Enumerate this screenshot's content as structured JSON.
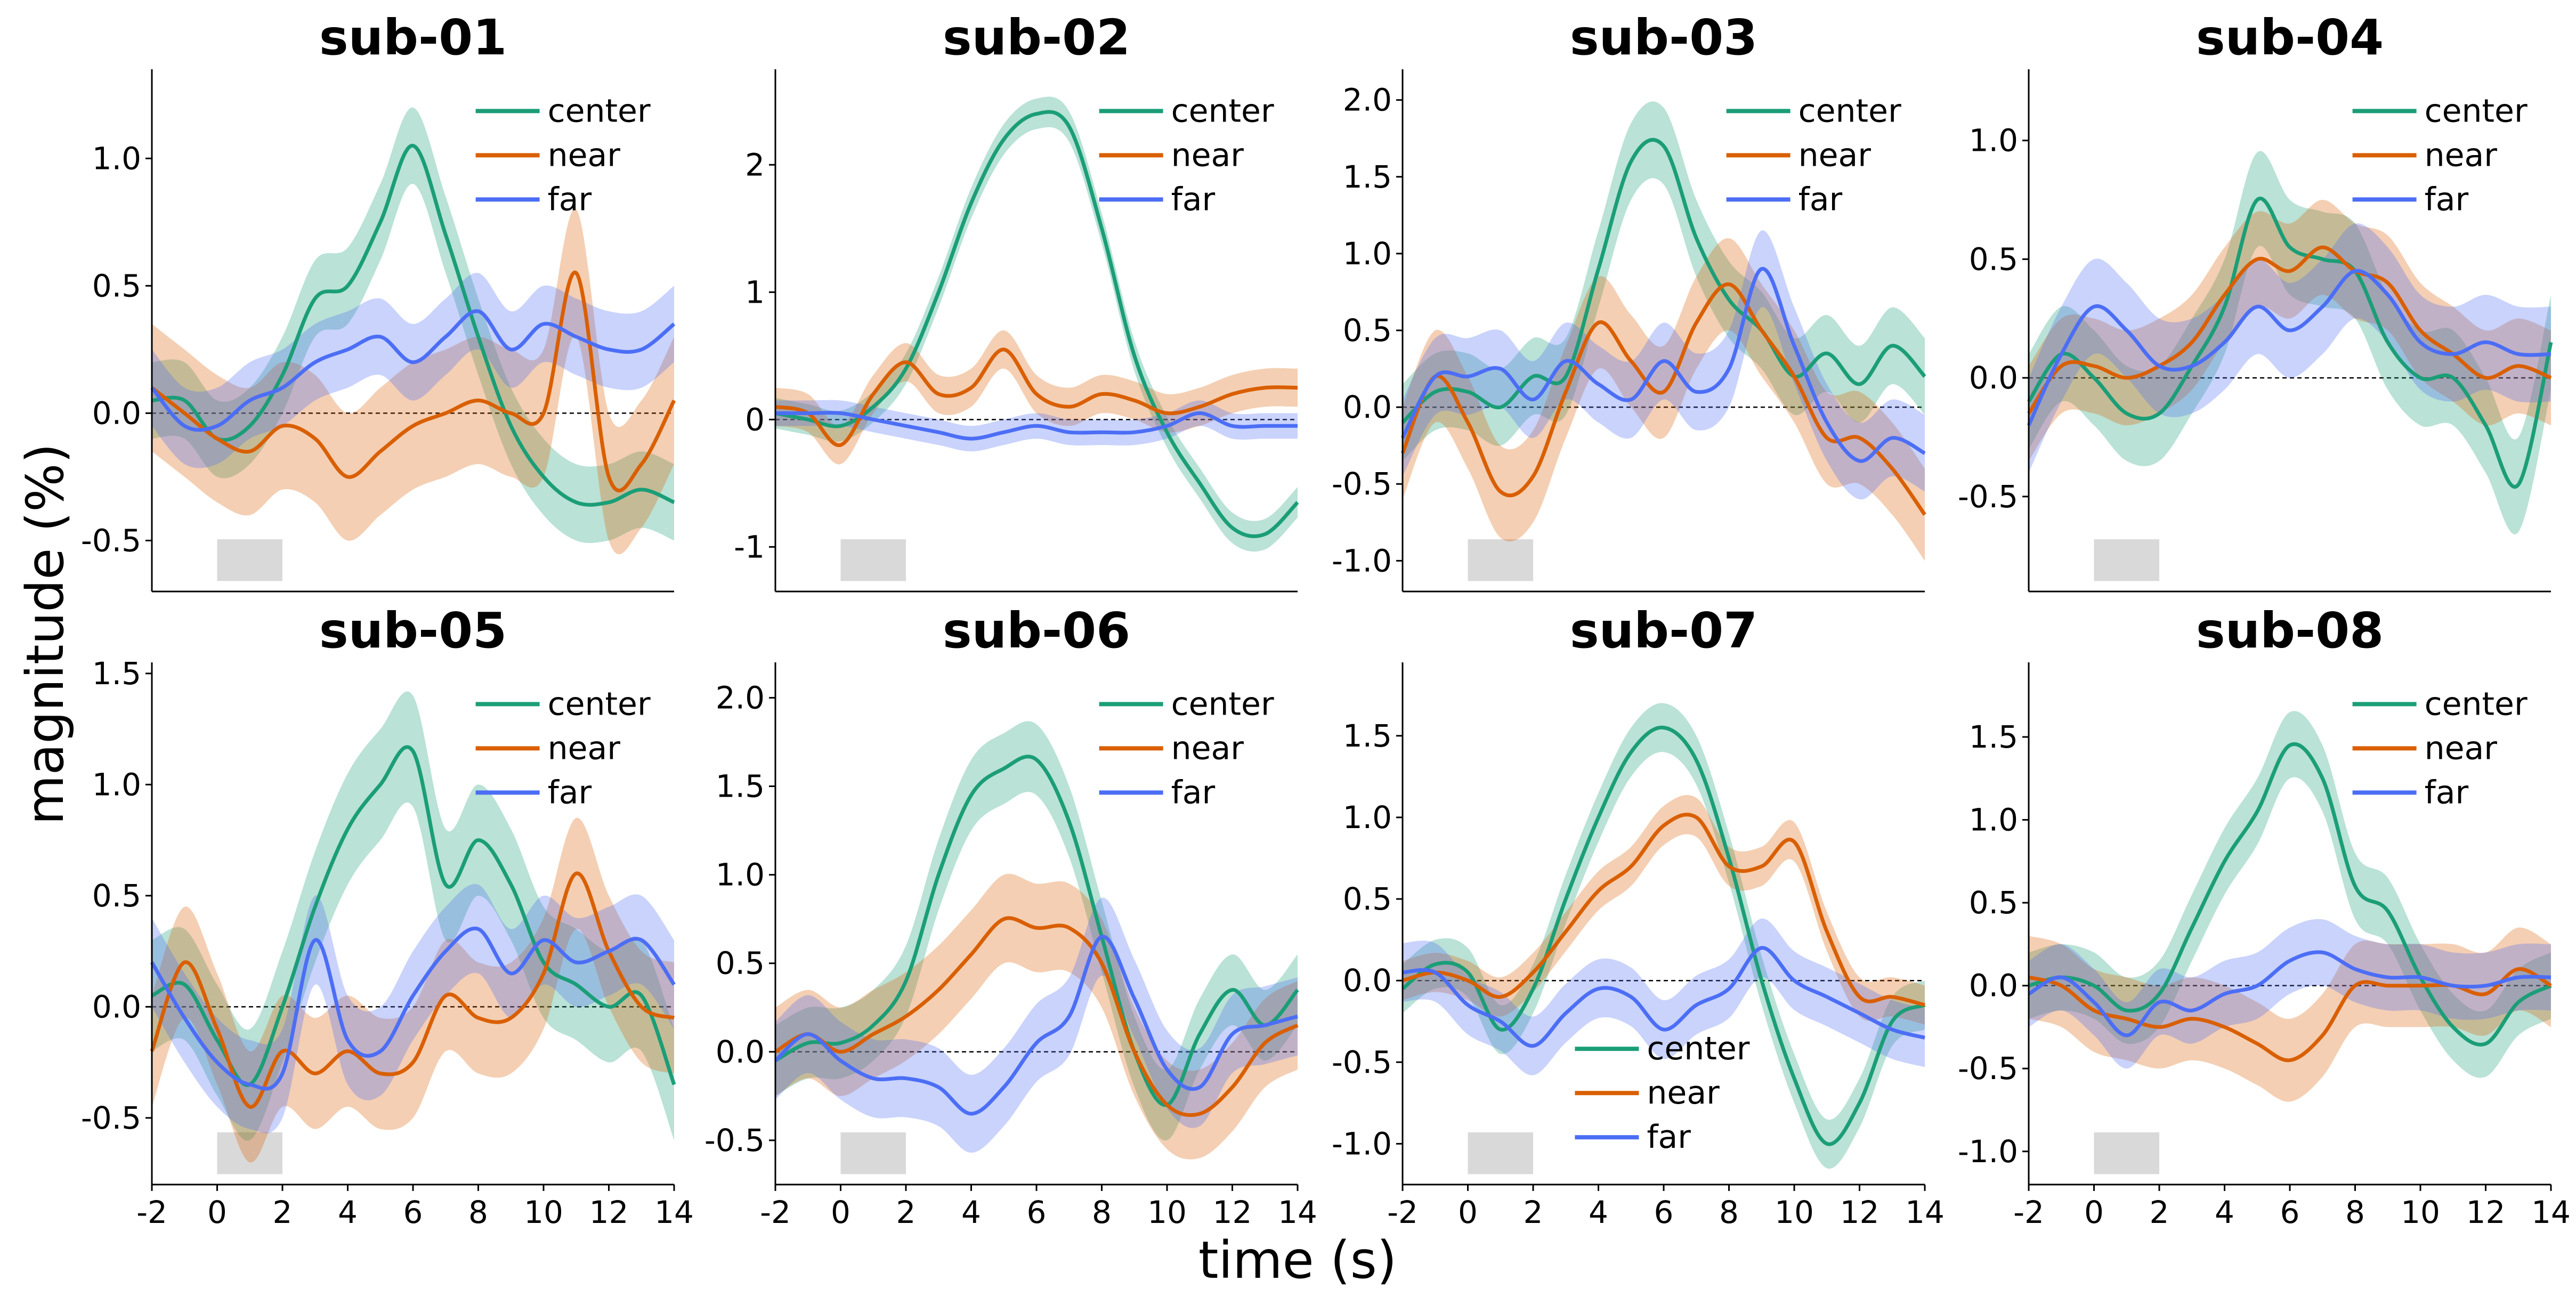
{
  "figure": {
    "xlabel": "time (s)",
    "ylabel": "magnitude (%)"
  },
  "colors": {
    "center": "#1b9e77",
    "near": "#d95f02",
    "far": "#4c6ef5",
    "stim": "#d9d9d9"
  },
  "chart_data": [
    {
      "type": "line",
      "title": "sub-01",
      "xlim": [
        -2,
        14
      ],
      "ylim": [
        -0.7,
        1.35
      ],
      "yticks": [
        -0.5,
        0.0,
        0.5,
        1.0
      ],
      "ytick_labels": [
        "-0.5",
        "0.0",
        "0.5",
        "1.0"
      ],
      "show_xticks": false,
      "legend": "top-right",
      "stimulus": [
        0,
        2
      ],
      "x": [
        -2,
        -1,
        0,
        1,
        2,
        3,
        4,
        5,
        6,
        7,
        8,
        9,
        10,
        11,
        12,
        13,
        14
      ],
      "series": [
        {
          "name": "center",
          "values": [
            0.05,
            0.05,
            -0.1,
            -0.05,
            0.15,
            0.45,
            0.5,
            0.75,
            1.05,
            0.7,
            0.3,
            -0.05,
            -0.25,
            -0.35,
            -0.35,
            -0.3,
            -0.35
          ],
          "band": 0.15
        },
        {
          "name": "near",
          "values": [
            0.1,
            0.0,
            -0.1,
            -0.15,
            -0.05,
            -0.1,
            -0.25,
            -0.15,
            -0.05,
            0.0,
            0.05,
            0.0,
            0.0,
            0.55,
            -0.25,
            -0.2,
            0.05
          ],
          "band": 0.25
        },
        {
          "name": "far",
          "values": [
            0.1,
            -0.05,
            -0.05,
            0.05,
            0.1,
            0.2,
            0.25,
            0.3,
            0.2,
            0.3,
            0.4,
            0.25,
            0.35,
            0.3,
            0.25,
            0.25,
            0.35
          ],
          "band": 0.15
        }
      ]
    },
    {
      "type": "line",
      "title": "sub-02",
      "xlim": [
        -2,
        14
      ],
      "ylim": [
        -1.35,
        2.75
      ],
      "yticks": [
        -1,
        0,
        1,
        2
      ],
      "ytick_labels": [
        "-1",
        "0",
        "1",
        "2"
      ],
      "show_xticks": false,
      "legend": "top-right",
      "stimulus": [
        0,
        2
      ],
      "x": [
        -2,
        -1,
        0,
        1,
        2,
        3,
        4,
        5,
        6,
        7,
        8,
        9,
        10,
        11,
        12,
        13,
        14
      ],
      "series": [
        {
          "name": "center",
          "values": [
            0.05,
            0.0,
            -0.05,
            0.1,
            0.4,
            1.0,
            1.7,
            2.2,
            2.4,
            2.3,
            1.5,
            0.5,
            -0.1,
            -0.5,
            -0.85,
            -0.9,
            -0.65
          ],
          "band": 0.12
        },
        {
          "name": "near",
          "values": [
            0.1,
            0.05,
            -0.2,
            0.2,
            0.45,
            0.2,
            0.25,
            0.55,
            0.2,
            0.1,
            0.2,
            0.15,
            0.05,
            0.1,
            0.2,
            0.25,
            0.25
          ],
          "band": 0.15
        },
        {
          "name": "far",
          "values": [
            0.05,
            0.05,
            0.05,
            0.0,
            -0.05,
            -0.1,
            -0.15,
            -0.1,
            -0.05,
            -0.1,
            -0.1,
            -0.1,
            -0.05,
            0.05,
            -0.05,
            -0.05,
            -0.05
          ],
          "band": 0.1
        }
      ]
    },
    {
      "type": "line",
      "title": "sub-03",
      "xlim": [
        -2,
        14
      ],
      "ylim": [
        -1.2,
        2.2
      ],
      "yticks": [
        -1.0,
        -0.5,
        0.0,
        0.5,
        1.0,
        1.5,
        2.0
      ],
      "ytick_labels": [
        "-1.0",
        "-0.5",
        "0.0",
        "0.5",
        "1.0",
        "1.5",
        "2.0"
      ],
      "show_xticks": false,
      "legend": "top-right",
      "stimulus": [
        0,
        2
      ],
      "x": [
        -2,
        -1,
        0,
        1,
        2,
        3,
        4,
        5,
        6,
        7,
        8,
        9,
        10,
        11,
        12,
        13,
        14
      ],
      "series": [
        {
          "name": "center",
          "values": [
            -0.1,
            0.1,
            0.1,
            0.0,
            0.2,
            0.2,
            0.9,
            1.6,
            1.7,
            1.1,
            0.7,
            0.5,
            0.2,
            0.35,
            0.15,
            0.4,
            0.2
          ],
          "band": 0.25
        },
        {
          "name": "near",
          "values": [
            -0.3,
            0.2,
            -0.1,
            -0.55,
            -0.45,
            0.1,
            0.55,
            0.3,
            0.1,
            0.55,
            0.8,
            0.5,
            0.2,
            -0.2,
            -0.2,
            -0.4,
            -0.7
          ],
          "band": 0.3
        },
        {
          "name": "far",
          "values": [
            -0.2,
            0.2,
            0.2,
            0.25,
            0.05,
            0.3,
            0.15,
            0.05,
            0.3,
            0.1,
            0.25,
            0.9,
            0.4,
            -0.1,
            -0.35,
            -0.2,
            -0.3
          ],
          "band": 0.25
        }
      ]
    },
    {
      "type": "line",
      "title": "sub-04",
      "xlim": [
        -2,
        14
      ],
      "ylim": [
        -0.9,
        1.3
      ],
      "yticks": [
        -0.5,
        0.0,
        0.5,
        1.0
      ],
      "ytick_labels": [
        "-0.5",
        "0.0",
        "0.5",
        "1.0"
      ],
      "show_xticks": false,
      "legend": "top-right",
      "stimulus": [
        0,
        2
      ],
      "x": [
        -2,
        -1,
        0,
        1,
        2,
        3,
        4,
        5,
        6,
        7,
        8,
        9,
        10,
        11,
        12,
        13,
        14
      ],
      "series": [
        {
          "name": "center",
          "values": [
            -0.1,
            0.1,
            0.0,
            -0.15,
            -0.15,
            0.05,
            0.3,
            0.75,
            0.55,
            0.5,
            0.45,
            0.15,
            0.0,
            0.0,
            -0.2,
            -0.45,
            0.15
          ],
          "band": 0.2
        },
        {
          "name": "near",
          "values": [
            -0.15,
            0.05,
            0.05,
            0.0,
            0.05,
            0.15,
            0.35,
            0.5,
            0.45,
            0.55,
            0.45,
            0.4,
            0.2,
            0.1,
            0.0,
            0.05,
            0.0
          ],
          "band": 0.2
        },
        {
          "name": "far",
          "values": [
            -0.2,
            0.1,
            0.3,
            0.2,
            0.05,
            0.05,
            0.15,
            0.3,
            0.2,
            0.3,
            0.45,
            0.35,
            0.15,
            0.1,
            0.15,
            0.1,
            0.1
          ],
          "band": 0.2
        }
      ]
    },
    {
      "type": "line",
      "title": "sub-05",
      "xlim": [
        -2,
        14
      ],
      "ylim": [
        -0.8,
        1.55
      ],
      "yticks": [
        -0.5,
        0.0,
        0.5,
        1.0,
        1.5
      ],
      "ytick_labels": [
        "-0.5",
        "0.0",
        "0.5",
        "1.0",
        "1.5"
      ],
      "show_xticks": true,
      "xticks": [
        -2,
        0,
        2,
        4,
        6,
        8,
        10,
        12,
        14
      ],
      "xtick_labels": [
        "-2",
        "0",
        "2",
        "4",
        "6",
        "8",
        "10",
        "12",
        "14"
      ],
      "legend": "top-right",
      "stimulus": [
        0,
        2
      ],
      "x": [
        -2,
        -1,
        0,
        1,
        2,
        3,
        4,
        5,
        6,
        7,
        8,
        9,
        10,
        11,
        12,
        13,
        14
      ],
      "series": [
        {
          "name": "center",
          "values": [
            0.05,
            0.1,
            -0.15,
            -0.35,
            0.0,
            0.45,
            0.8,
            1.0,
            1.15,
            0.55,
            0.75,
            0.55,
            0.2,
            0.1,
            0.0,
            0.05,
            -0.35
          ],
          "band": 0.25
        },
        {
          "name": "near",
          "values": [
            -0.2,
            0.2,
            -0.1,
            -0.45,
            -0.2,
            -0.3,
            -0.2,
            -0.3,
            -0.25,
            0.05,
            -0.05,
            -0.05,
            0.15,
            0.6,
            0.25,
            0.0,
            -0.05
          ],
          "band": 0.25
        },
        {
          "name": "far",
          "values": [
            0.2,
            -0.05,
            -0.25,
            -0.35,
            -0.3,
            0.3,
            -0.15,
            -0.2,
            0.05,
            0.25,
            0.35,
            0.15,
            0.3,
            0.2,
            0.25,
            0.3,
            0.1
          ],
          "band": 0.2
        }
      ]
    },
    {
      "type": "line",
      "title": "sub-06",
      "xlim": [
        -2,
        14
      ],
      "ylim": [
        -0.75,
        2.2
      ],
      "yticks": [
        -0.5,
        0.0,
        0.5,
        1.0,
        1.5,
        2.0
      ],
      "ytick_labels": [
        "-0.5",
        "0.0",
        "0.5",
        "1.0",
        "1.5",
        "2.0"
      ],
      "show_xticks": true,
      "xticks": [
        -2,
        0,
        2,
        4,
        6,
        8,
        10,
        12,
        14
      ],
      "xtick_labels": [
        "-2",
        "0",
        "2",
        "4",
        "6",
        "8",
        "10",
        "12",
        "14"
      ],
      "legend": "top-right",
      "stimulus": [
        0,
        2
      ],
      "x": [
        -2,
        -1,
        0,
        1,
        2,
        3,
        4,
        5,
        6,
        7,
        8,
        9,
        10,
        11,
        12,
        13,
        14
      ],
      "series": [
        {
          "name": "center",
          "values": [
            -0.05,
            0.05,
            0.05,
            0.15,
            0.4,
            1.0,
            1.45,
            1.6,
            1.65,
            1.3,
            0.65,
            0.0,
            -0.3,
            0.1,
            0.35,
            0.15,
            0.35
          ],
          "band": 0.2
        },
        {
          "name": "near",
          "values": [
            0.0,
            0.1,
            0.0,
            0.1,
            0.2,
            0.35,
            0.55,
            0.75,
            0.7,
            0.7,
            0.5,
            0.0,
            -0.3,
            -0.35,
            -0.2,
            0.05,
            0.15
          ],
          "band": 0.25
        },
        {
          "name": "far",
          "values": [
            -0.05,
            0.1,
            -0.05,
            -0.15,
            -0.15,
            -0.2,
            -0.35,
            -0.2,
            0.05,
            0.2,
            0.65,
            0.3,
            -0.1,
            -0.2,
            0.1,
            0.15,
            0.2
          ],
          "band": 0.22
        }
      ]
    },
    {
      "type": "line",
      "title": "sub-07",
      "xlim": [
        -2,
        14
      ],
      "ylim": [
        -1.25,
        1.95
      ],
      "yticks": [
        -1.0,
        -0.5,
        0.0,
        0.5,
        1.0,
        1.5
      ],
      "ytick_labels": [
        "-1.0",
        "-0.5",
        "0.0",
        "0.5",
        "1.0",
        "1.5"
      ],
      "show_xticks": true,
      "xticks": [
        -2,
        0,
        2,
        4,
        6,
        8,
        10,
        12,
        14
      ],
      "xtick_labels": [
        "-2",
        "0",
        "2",
        "4",
        "6",
        "8",
        "10",
        "12",
        "14"
      ],
      "legend": "bottom-center",
      "stimulus": [
        0,
        2
      ],
      "x": [
        -2,
        -1,
        0,
        1,
        2,
        3,
        4,
        5,
        6,
        7,
        8,
        9,
        10,
        11,
        12,
        13,
        14
      ],
      "series": [
        {
          "name": "center",
          "values": [
            -0.05,
            0.1,
            0.05,
            -0.3,
            -0.05,
            0.5,
            1.0,
            1.4,
            1.55,
            1.35,
            0.75,
            0.0,
            -0.6,
            -1.0,
            -0.75,
            -0.25,
            -0.15
          ],
          "band": 0.15
        },
        {
          "name": "near",
          "values": [
            0.0,
            0.05,
            0.0,
            -0.1,
            0.05,
            0.3,
            0.55,
            0.7,
            0.95,
            1.0,
            0.7,
            0.7,
            0.85,
            0.3,
            -0.1,
            -0.1,
            -0.15
          ],
          "band": 0.12
        },
        {
          "name": "far",
          "values": [
            0.05,
            0.05,
            -0.15,
            -0.25,
            -0.4,
            -0.2,
            -0.05,
            -0.1,
            -0.3,
            -0.15,
            -0.05,
            0.2,
            0.0,
            -0.1,
            -0.2,
            -0.3,
            -0.35
          ],
          "band": 0.18
        }
      ]
    },
    {
      "type": "line",
      "title": "sub-08",
      "xlim": [
        -2,
        14
      ],
      "ylim": [
        -1.2,
        1.95
      ],
      "yticks": [
        -1.0,
        -0.5,
        0.0,
        0.5,
        1.0,
        1.5
      ],
      "ytick_labels": [
        "-1.0",
        "-0.5",
        "0.0",
        "0.5",
        "1.0",
        "1.5"
      ],
      "show_xticks": true,
      "xticks": [
        -2,
        0,
        2,
        4,
        6,
        8,
        10,
        12,
        14
      ],
      "xtick_labels": [
        "-2",
        "0",
        "2",
        "4",
        "6",
        "8",
        "10",
        "12",
        "14"
      ],
      "legend": "top-right",
      "stimulus": [
        0,
        2
      ],
      "x": [
        -2,
        -1,
        0,
        1,
        2,
        3,
        4,
        5,
        6,
        7,
        8,
        9,
        10,
        11,
        12,
        13,
        14
      ],
      "series": [
        {
          "name": "center",
          "values": [
            0.0,
            0.05,
            0.0,
            -0.15,
            -0.05,
            0.35,
            0.75,
            1.05,
            1.45,
            1.25,
            0.6,
            0.45,
            0.05,
            -0.25,
            -0.35,
            -0.1,
            0.0
          ],
          "band": 0.2
        },
        {
          "name": "near",
          "values": [
            0.05,
            0.0,
            -0.15,
            -0.2,
            -0.25,
            -0.2,
            -0.25,
            -0.35,
            -0.45,
            -0.3,
            0.0,
            0.0,
            0.0,
            0.0,
            -0.05,
            0.1,
            0.0
          ],
          "band": 0.25
        },
        {
          "name": "far",
          "values": [
            -0.05,
            0.05,
            -0.1,
            -0.3,
            -0.1,
            -0.15,
            -0.05,
            0.0,
            0.15,
            0.2,
            0.1,
            0.05,
            0.05,
            0.0,
            0.0,
            0.05,
            0.05
          ],
          "band": 0.2
        }
      ]
    }
  ]
}
